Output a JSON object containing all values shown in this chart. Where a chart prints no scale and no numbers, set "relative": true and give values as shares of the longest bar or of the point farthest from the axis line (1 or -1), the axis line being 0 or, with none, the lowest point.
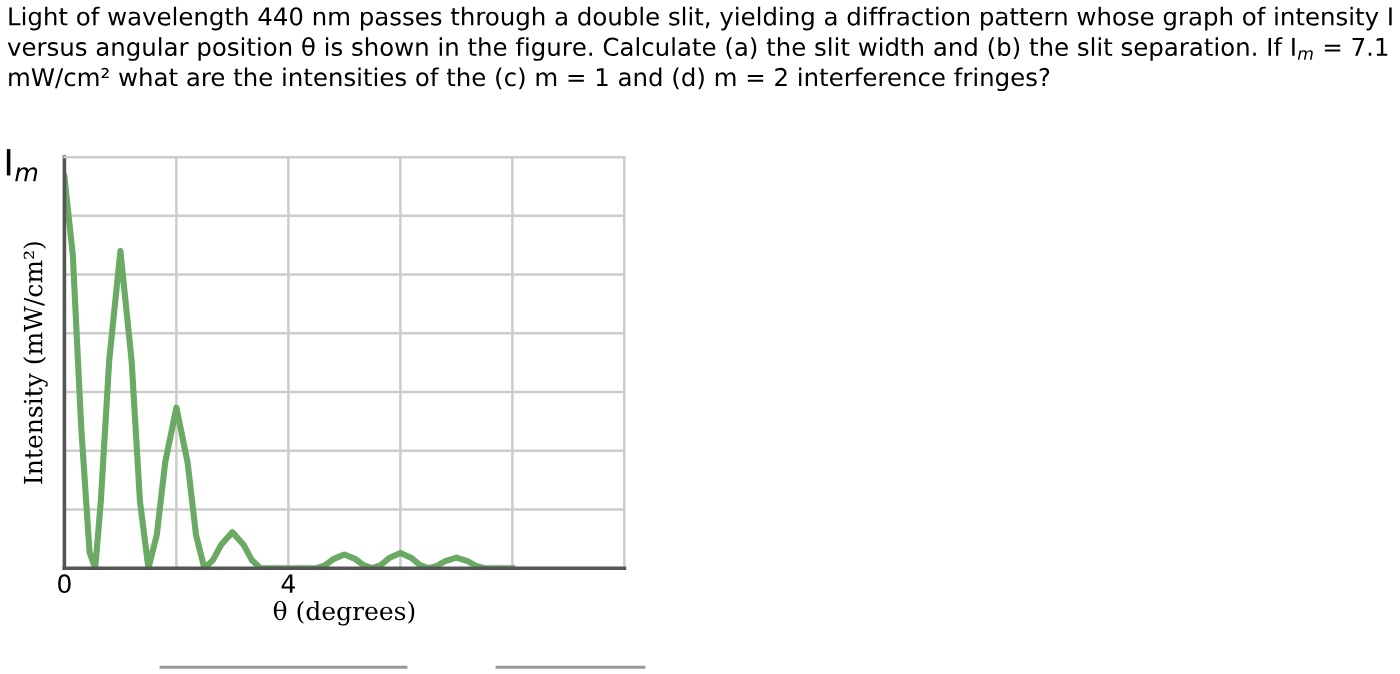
{
  "chart_data": {
    "type": "line",
    "title": "Light of wavelength 440 nm passes through a double slit, yielding a diffraction pattern whose graph of intensity I versus angular position θ is shown in the figure. Calculate (a) the slit width and (b) the slit separation. If I$_{m}$ = 7.1 mW/cm² what are the intensities of the (c) m = 1 and (d) m = 2 interference fringes?",
    "xlabel": "θ (degrees)",
    "ylabel": "Intensity (mW/cm²)",
    "relative": true,
    "xlim": [
      0,
      10
    ],
    "xticks": [
      0,
      {
        "value": 2,
        "label": null
      },
      4,
      {
        "value": 6,
        "label": null
      },
      {
        "value": 8,
        "label": null
      },
      {
        "value": 10,
        "label": null
      }
    ],
    "grid": true,
    "marker": "none",
    "line_style": "solid",
    "annotations": [
      {
        "text": "I$_{m}$",
        "x": 0,
        "y": 1
      }
    ],
    "series": [
      {
        "color": "#6aaa64",
        "x": [
          0,
          0.15,
          0.3,
          0.45,
          0.55,
          0.65,
          0.8,
          1.0,
          1.2,
          1.35,
          1.5,
          1.65,
          1.8,
          2.0,
          2.2,
          2.35,
          2.5,
          2.65,
          2.8,
          3.0,
          3.2,
          3.35,
          3.5,
          4.0,
          4.5,
          4.65,
          4.8,
          5.0,
          5.2,
          5.35,
          5.5,
          5.65,
          5.8,
          6.0,
          6.2,
          6.35,
          6.5,
          6.65,
          6.8,
          7.0,
          7.2,
          7.35,
          7.5,
          8.0
        ],
        "values": [
          1.0,
          0.8,
          0.36,
          0.04,
          0,
          0.17,
          0.53,
          0.81,
          0.53,
          0.17,
          0,
          0.085,
          0.27,
          0.41,
          0.27,
          0.085,
          0,
          0.02,
          0.06,
          0.092,
          0.06,
          0.02,
          0,
          0,
          0,
          0.007,
          0.023,
          0.035,
          0.023,
          0.007,
          0,
          0.008,
          0.026,
          0.039,
          0.026,
          0.008,
          0,
          0.006,
          0.018,
          0.027,
          0.018,
          0.006,
          0,
          0
        ]
      }
    ]
  }
}
